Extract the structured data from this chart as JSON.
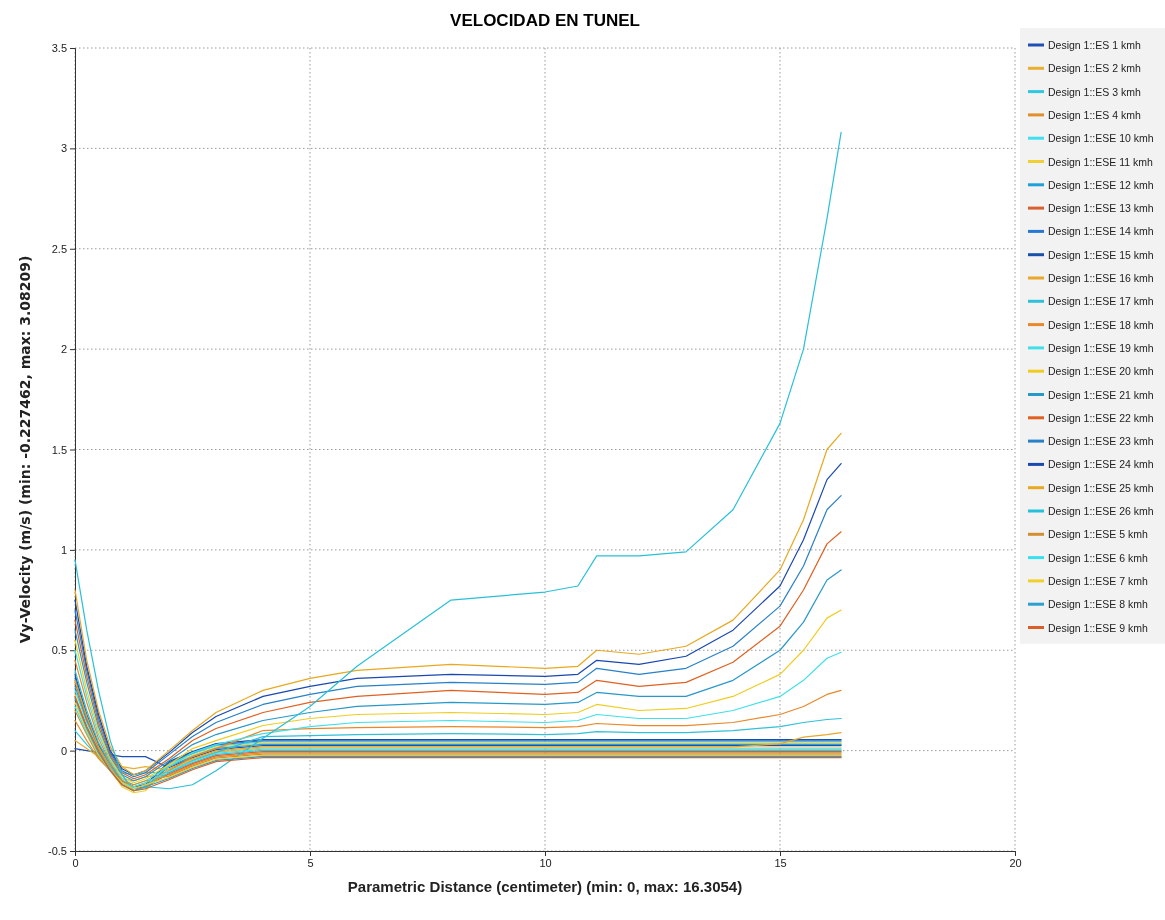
{
  "chart_data": {
    "type": "line",
    "title": "VELOCIDAD EN TUNEL",
    "xlabel": "Parametric Distance (centimeter) (min: 0, max: 16.3054)",
    "ylabel": "Vy-Velocity (m/s) (min: -0.227462, max: 3.08209)",
    "xlim": [
      0,
      20
    ],
    "xticks": [
      0,
      5,
      10,
      15,
      20
    ],
    "ylim": [
      -0.5,
      3.5
    ],
    "yticks": [
      -0.5,
      0,
      0.5,
      1,
      1.5,
      2,
      2.5,
      3,
      3.5
    ],
    "grid": true,
    "legend": "right",
    "line_style": "solid",
    "marker": "none",
    "x": [
      0,
      0.25,
      0.5,
      0.75,
      1,
      1.25,
      1.5,
      2,
      2.5,
      3,
      4,
      5,
      6,
      8,
      10,
      10.7,
      11.1,
      12,
      13,
      14,
      15,
      15.5,
      16,
      16.3
    ],
    "series": [
      {
        "name": "Design 1::ES 1 kmh",
        "color": "#1f4fb4",
        "values": [
          0.01,
          0,
          -0.01,
          -0.02,
          -0.03,
          -0.03,
          -0.03,
          -0.085,
          -0.035,
          0.005,
          0.025,
          0.025,
          0.025,
          0.025,
          0.025,
          0.025,
          0.025,
          0.025,
          0.025,
          0.025,
          0.025,
          0.025,
          0.025,
          0.025
        ]
      },
      {
        "name": "Design 1::ES 2 kmh",
        "color": "#e8b030",
        "values": [
          0.05,
          0.01,
          -0.03,
          -0.06,
          -0.08,
          -0.09,
          -0.08,
          -0.097,
          -0.047,
          -0.007,
          0.013,
          0.013,
          0.013,
          0.013,
          0.013,
          0.013,
          0.013,
          0.013,
          0.013,
          0.013,
          0.013,
          0.013,
          0.013,
          0.013
        ]
      },
      {
        "name": "Design 1::ES 3 kmh",
        "color": "#30c8e0",
        "values": [
          0.1,
          0.03,
          -0.03,
          -0.08,
          -0.11,
          -0.12,
          -0.11,
          -0.109,
          -0.059,
          -0.019,
          0.001,
          0.001,
          0.001,
          0.001,
          0.001,
          0.001,
          0.001,
          0.001,
          0.001,
          0.001,
          0.001,
          0.001,
          0.001,
          0.001
        ]
      },
      {
        "name": "Design 1::ES 4 kmh",
        "color": "#e0902a",
        "values": [
          0.15,
          0.05,
          -0.04,
          -0.1,
          -0.14,
          -0.15,
          -0.13,
          -0.121,
          -0.071,
          -0.031,
          -0.011,
          -0.011,
          -0.011,
          -0.011,
          -0.011,
          -0.011,
          -0.011,
          -0.011,
          -0.011,
          -0.011,
          -0.011,
          -0.011,
          -0.011,
          -0.011
        ]
      },
      {
        "name": "Design 1::ESE 10 kmh",
        "color": "#40e0f0",
        "values": [
          0.3,
          0.14,
          0.01,
          -0.09,
          -0.17,
          -0.2,
          -0.19,
          -0.067,
          -0.017,
          0.023,
          0.043,
          0.043,
          0.043,
          0.043,
          0.043,
          0.043,
          0.043,
          0.043,
          0.043,
          0.043,
          0.043,
          0.043,
          0.043,
          0.043
        ]
      },
      {
        "name": "Design 1::ESE 11 kmh",
        "color": "#f0d030",
        "values": [
          0.28,
          0.12,
          0,
          -0.1,
          -0.18,
          -0.21,
          -0.2,
          -0.073,
          -0.023,
          0.017,
          0.037,
          0.037,
          0.037,
          0.037,
          0.037,
          0.037,
          0.037,
          0.037,
          0.037,
          0.037,
          0.037,
          0.037,
          0.037,
          0.037
        ]
      },
      {
        "name": "Design 1::ESE 12 kmh",
        "color": "#20a0d8",
        "values": [
          0.32,
          0.15,
          0.02,
          -0.08,
          -0.16,
          -0.19,
          -0.18,
          -0.079,
          -0.029,
          0.011,
          0.031,
          0.031,
          0.031,
          0.031,
          0.031,
          0.031,
          0.031,
          0.031,
          0.031,
          0.031,
          0.031,
          0.031,
          0.031,
          0.031
        ]
      },
      {
        "name": "Design 1::ESE 13 kmh",
        "color": "#d86030",
        "values": [
          0.34,
          0.16,
          0.02,
          -0.08,
          -0.16,
          -0.19,
          -0.18,
          -0.115,
          -0.065,
          -0.025,
          -0.005,
          -0.005,
          -0.005,
          -0.005,
          -0.005,
          -0.005,
          -0.005,
          -0.005,
          -0.005,
          -0.005,
          -0.005,
          -0.005,
          -0.005,
          -0.005
        ]
      },
      {
        "name": "Design 1::ESE 14 kmh",
        "color": "#2878d0",
        "values": [
          0.36,
          0.17,
          0.03,
          -0.07,
          -0.15,
          -0.18,
          -0.17,
          -0.061,
          -0.011,
          0.029,
          0.049,
          0.049,
          0.049,
          0.049,
          0.049,
          0.049,
          0.049,
          0.049,
          0.049,
          0.049,
          0.049,
          0.049,
          0.049,
          0.049
        ]
      },
      {
        "name": "Design 1::ESE 15 kmh",
        "color": "#1a50a8",
        "values": [
          0.38,
          0.18,
          0.03,
          -0.07,
          -0.15,
          -0.18,
          -0.17,
          -0.055,
          -0.005,
          0.035,
          0.055,
          0.055,
          0.055,
          0.055,
          0.055,
          0.055,
          0.055,
          0.055,
          0.055,
          0.055,
          0.055,
          0.055,
          0.055,
          0.055
        ]
      },
      {
        "name": "Design 1::ESE 16 kmh",
        "color": "#e8a828",
        "values": [
          0.35,
          0.17,
          0.02,
          -0.08,
          -0.17,
          -0.2,
          -0.18,
          -0.091,
          -0.041,
          -0.001,
          0.019,
          0.019,
          0.019,
          0.019,
          0.019,
          0.019,
          0.019,
          0.019,
          0.019,
          0.019,
          0.034,
          0.067,
          0.08,
          0.09
        ]
      },
      {
        "name": "Design 1::ESE 17 kmh",
        "color": "#30c0d8",
        "values": [
          0.4,
          0.2,
          0.04,
          -0.07,
          -0.16,
          -0.19,
          -0.17,
          -0.11,
          -0.05,
          -0.01,
          0.07,
          0.075,
          0.08,
          0.085,
          0.08,
          0.085,
          0.095,
          0.09,
          0.09,
          0.1,
          0.12,
          0.14,
          0.155,
          0.16
        ]
      },
      {
        "name": "Design 1::ESE 18 kmh",
        "color": "#e88828",
        "values": [
          0.45,
          0.24,
          0.06,
          -0.06,
          -0.15,
          -0.18,
          -0.16,
          -0.1,
          -0.03,
          0.01,
          0.1,
          0.11,
          0.115,
          0.12,
          0.115,
          0.12,
          0.135,
          0.125,
          0.125,
          0.14,
          0.18,
          0.22,
          0.28,
          0.3
        ]
      },
      {
        "name": "Design 1::ESE 19 kmh",
        "color": "#40e0e8",
        "values": [
          0.5,
          0.27,
          0.08,
          -0.05,
          -0.14,
          -0.17,
          -0.15,
          -0.08,
          -0.01,
          0.03,
          0.085,
          0.12,
          0.14,
          0.15,
          0.14,
          0.15,
          0.18,
          0.16,
          0.16,
          0.2,
          0.27,
          0.35,
          0.46,
          0.49
        ]
      },
      {
        "name": "Design 1::ESE 20 kmh",
        "color": "#f0cc20",
        "values": [
          0.55,
          0.3,
          0.1,
          -0.04,
          -0.13,
          -0.16,
          -0.14,
          -0.07,
          0.01,
          0.05,
          0.125,
          0.16,
          0.18,
          0.19,
          0.18,
          0.19,
          0.23,
          0.2,
          0.21,
          0.27,
          0.38,
          0.5,
          0.66,
          0.7
        ]
      },
      {
        "name": "Design 1::ESE 21 kmh",
        "color": "#2898c8",
        "values": [
          0.6,
          0.34,
          0.12,
          -0.03,
          -0.12,
          -0.15,
          -0.13,
          -0.05,
          0.03,
          0.08,
          0.15,
          0.19,
          0.22,
          0.24,
          0.23,
          0.24,
          0.29,
          0.27,
          0.27,
          0.35,
          0.5,
          0.64,
          0.85,
          0.9
        ]
      },
      {
        "name": "Design 1::ESE 22 kmh",
        "color": "#e06020",
        "values": [
          0.65,
          0.37,
          0.14,
          -0.02,
          -0.11,
          -0.14,
          -0.12,
          -0.04,
          0.05,
          0.11,
          0.19,
          0.24,
          0.27,
          0.3,
          0.28,
          0.29,
          0.35,
          0.32,
          0.34,
          0.44,
          0.62,
          0.8,
          1.03,
          1.09
        ]
      },
      {
        "name": "Design 1::ESE 23 kmh",
        "color": "#2880c8",
        "values": [
          0.7,
          0.4,
          0.16,
          -0.01,
          -0.1,
          -0.13,
          -0.11,
          -0.02,
          0.07,
          0.14,
          0.23,
          0.28,
          0.32,
          0.34,
          0.33,
          0.34,
          0.41,
          0.38,
          0.41,
          0.52,
          0.72,
          0.92,
          1.2,
          1.27
        ]
      },
      {
        "name": "Design 1::ESE 24 kmh",
        "color": "#1848b0",
        "values": [
          0.75,
          0.42,
          0.18,
          0,
          -0.09,
          -0.12,
          -0.1,
          -0.01,
          0.09,
          0.17,
          0.27,
          0.32,
          0.36,
          0.38,
          0.37,
          0.38,
          0.45,
          0.43,
          0.47,
          0.6,
          0.82,
          1.05,
          1.35,
          1.43
        ]
      },
      {
        "name": "Design 1::ESE 25 kmh",
        "color": "#e8a820",
        "values": [
          0.8,
          0.45,
          0.2,
          0.02,
          -0.08,
          -0.12,
          -0.1,
          0,
          0.1,
          0.19,
          0.3,
          0.36,
          0.4,
          0.43,
          0.41,
          0.42,
          0.5,
          0.48,
          0.52,
          0.65,
          0.9,
          1.15,
          1.5,
          1.58
        ]
      },
      {
        "name": "Design 1::ESE 26 kmh",
        "color": "#28c0d8",
        "values": [
          0.95,
          0.6,
          0.3,
          0.05,
          -0.12,
          -0.2,
          -0.18,
          -0.19,
          -0.17,
          -0.1,
          0.062,
          0.22,
          0.42,
          0.75,
          0.79,
          0.82,
          0.97,
          0.97,
          0.99,
          1.2,
          1.63,
          2,
          2.65,
          3.08
        ]
      },
      {
        "name": "Design 1::ESE 5 kmh",
        "color": "#d09030",
        "values": [
          0.2,
          0.08,
          -0.03,
          -0.1,
          -0.15,
          -0.17,
          -0.15,
          -0.127,
          -0.077,
          -0.037,
          -0.017,
          -0.017,
          -0.017,
          -0.017,
          -0.017,
          -0.017,
          -0.017,
          -0.017,
          -0.017,
          -0.017,
          -0.017,
          -0.017,
          -0.017,
          -0.017
        ]
      },
      {
        "name": "Design 1::ESE 6 kmh",
        "color": "#38e0f0",
        "values": [
          0.22,
          0.09,
          -0.02,
          -0.1,
          -0.16,
          -0.18,
          -0.16,
          -0.103,
          -0.053,
          -0.013,
          0.007,
          0.007,
          0.007,
          0.007,
          0.007,
          0.007,
          0.007,
          0.007,
          0.007,
          0.007,
          0.007,
          0.007,
          0.007,
          0.007
        ]
      },
      {
        "name": "Design 1::ESE 7 kmh",
        "color": "#f0d028",
        "values": [
          0.24,
          0.1,
          -0.02,
          -0.1,
          -0.16,
          -0.19,
          -0.17,
          -0.133,
          -0.083,
          -0.043,
          -0.023,
          -0.023,
          -0.023,
          -0.023,
          -0.023,
          -0.023,
          -0.023,
          -0.023,
          -0.023,
          -0.023,
          -0.023,
          -0.023,
          -0.023,
          -0.023
        ]
      },
      {
        "name": "Design 1::ESE 8 kmh",
        "color": "#2aa0d0",
        "values": [
          0.26,
          0.11,
          -0.01,
          -0.1,
          -0.17,
          -0.2,
          -0.18,
          -0.139,
          -0.089,
          -0.049,
          -0.029,
          -0.029,
          -0.029,
          -0.029,
          -0.029,
          -0.029,
          -0.029,
          -0.029,
          -0.029,
          -0.029,
          -0.029,
          -0.029,
          -0.029,
          -0.029
        ]
      },
      {
        "name": "Design 1::ESE 9 kmh",
        "color": "#d86028",
        "values": [
          0.27,
          0.12,
          0,
          -0.1,
          -0.17,
          -0.2,
          -0.19,
          -0.145,
          -0.095,
          -0.055,
          -0.035,
          -0.035,
          -0.035,
          -0.035,
          -0.035,
          -0.035,
          -0.035,
          -0.035,
          -0.035,
          -0.035,
          -0.035,
          -0.035,
          -0.035,
          -0.035
        ]
      }
    ]
  }
}
